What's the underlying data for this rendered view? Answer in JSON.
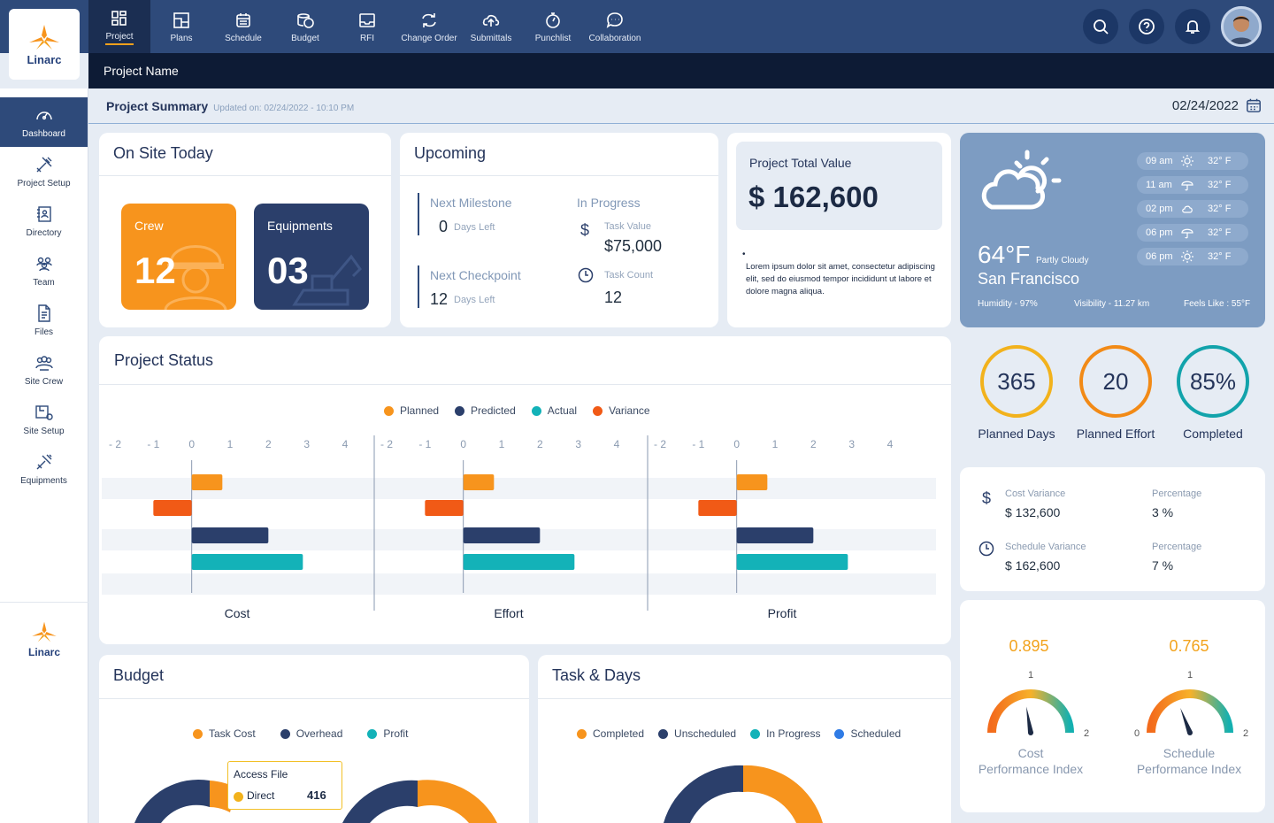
{
  "brand": {
    "name": "Linarc"
  },
  "nav": [
    {
      "label": "Project",
      "icon": "grid-icon"
    },
    {
      "label": "Plans",
      "icon": "plans-icon"
    },
    {
      "label": "Schedule",
      "icon": "calendar-icon"
    },
    {
      "label": "Budget",
      "icon": "coins-icon"
    },
    {
      "label": "RFI",
      "icon": "inbox-icon"
    },
    {
      "label": "Change Order",
      "icon": "swap-icon"
    },
    {
      "label": "Submittals",
      "icon": "cloud-upload-icon"
    },
    {
      "label": "Punchlist",
      "icon": "stopwatch-icon"
    },
    {
      "label": "Collaboration",
      "icon": "chat-icon"
    }
  ],
  "project_name": "Project Name",
  "sidebar": [
    {
      "label": "Dashboard",
      "icon": "gauge-icon"
    },
    {
      "label": "Project Setup",
      "icon": "tools-icon"
    },
    {
      "label": "Directory",
      "icon": "book-icon"
    },
    {
      "label": "Team",
      "icon": "team-icon"
    },
    {
      "label": "Files",
      "icon": "file-icon"
    },
    {
      "label": "Site Crew",
      "icon": "crew-icon"
    },
    {
      "label": "Site  Setup",
      "icon": "site-setup-icon"
    },
    {
      "label": "Equipments",
      "icon": "equipment-icon"
    }
  ],
  "summary": {
    "title": "Project Summary",
    "updated": "Updated on: 02/24/2022 - 10:10 PM",
    "date": "02/24/2022"
  },
  "onsite": {
    "title": "On Site Today",
    "crew_label": "Crew",
    "crew_value": "12",
    "equip_label": "Equipments",
    "equip_value": "03"
  },
  "upcoming": {
    "title": "Upcoming",
    "milestone_label": "Next Milestone",
    "milestone_value": "0",
    "milestone_unit": "Days Left",
    "checkpoint_label": "Next Checkpoint",
    "checkpoint_value": "12",
    "checkpoint_unit": "Days Left",
    "inprogress_label": "In Progress",
    "task_value_label": "Task Value",
    "task_value": "$75,000",
    "task_count_label": "Task Count",
    "task_count": "12",
    "dollar_sign": "$"
  },
  "total_value": {
    "label": "Project Total Value",
    "value": "$ 162,600",
    "bullet": "•",
    "note": "Lorem ipsum dolor sit amet, consectetur adipiscing elit, sed do eiusmod tempor incididunt ut labore et dolore magna aliqua."
  },
  "weather": {
    "temp": "64°F",
    "condition": "Partly Cloudy",
    "city": "San Francisco",
    "humidity": "Humidity - 97%",
    "visibility": "Visibility - 11.27 km",
    "feels": "Feels Like : 55°F",
    "forecast": [
      {
        "time": "09 am",
        "icon": "sun-icon",
        "temp": "32° F"
      },
      {
        "time": "11 am",
        "icon": "umbrella-icon",
        "temp": "32° F"
      },
      {
        "time": "02 pm",
        "icon": "cloud-icon",
        "temp": "32° F"
      },
      {
        "time": "06 pm",
        "icon": "umbrella-icon",
        "temp": "32° F"
      },
      {
        "time": "06 pm",
        "icon": "sun-icon",
        "temp": "32° F"
      }
    ]
  },
  "stats": [
    {
      "value": "365",
      "label": "Planned Days",
      "color": "#f2b21c"
    },
    {
      "value": "20",
      "label": "Planned Effort",
      "color": "#f28a16"
    },
    {
      "value": "85%",
      "label": "Completed",
      "color": "#12a3ab"
    }
  ],
  "variance": {
    "cost_label": "Cost Variance",
    "cost_value": "$ 132,600",
    "cost_pct_label": "Percentage",
    "cost_pct": "3 %",
    "sched_label": "Schedule Variance",
    "sched_value": "$ 162,600",
    "sched_pct_label": "Percentage",
    "sched_pct": "7 %",
    "dollar_sign": "$"
  },
  "project_status": {
    "title": "Project Status"
  },
  "chart_data": {
    "type": "bar",
    "orientation": "horizontal",
    "panels": [
      "Cost",
      "Effort",
      "Profit"
    ],
    "x_ticks": [
      "- 2",
      "- 1",
      "0",
      "1",
      "2",
      "3",
      "4"
    ],
    "xlim": [
      -2,
      4
    ],
    "series": [
      {
        "name": "Planned",
        "color": "#f7941d",
        "values": [
          0.8,
          0.8,
          0.8
        ]
      },
      {
        "name": "Variance",
        "color": "#f15a16",
        "values": [
          -1.0,
          -1.0,
          -1.0
        ]
      },
      {
        "name": "Predicted",
        "color": "#2b3f6b",
        "values": [
          2.0,
          2.0,
          2.0
        ]
      },
      {
        "name": "Actual",
        "color": "#13b2b8",
        "values": [
          2.9,
          2.9,
          2.9
        ]
      }
    ],
    "legend": [
      {
        "name": "Planned",
        "color": "#f7941d"
      },
      {
        "name": "Predicted",
        "color": "#2b3f6b"
      },
      {
        "name": "Actual",
        "color": "#13b2b8"
      },
      {
        "name": "Variance",
        "color": "#f15a16"
      }
    ],
    "legend_position": "top"
  },
  "gauges": [
    {
      "value": "0.895",
      "min": "",
      "mid": "1",
      "max": "2",
      "label1": "Cost",
      "label2": "Performance Index",
      "reading": 0.895
    },
    {
      "value": "0.765",
      "min": "0",
      "mid": "1",
      "max": "2",
      "label1": "Schedule",
      "label2": "Performance Index",
      "reading": 0.765
    }
  ],
  "budget": {
    "title": "Budget",
    "legend": [
      {
        "name": "Task Cost",
        "color": "#f7941d"
      },
      {
        "name": "Overhead",
        "color": "#2b3f6b"
      },
      {
        "name": "Profit",
        "color": "#13b2b8"
      }
    ],
    "tooltip_title": "Access File",
    "tooltip_name": "Direct",
    "tooltip_value": "416"
  },
  "tasks": {
    "title": "Task & Days",
    "legend": [
      {
        "name": "Completed",
        "color": "#f7941d"
      },
      {
        "name": "Unscheduled",
        "color": "#2b3f6b"
      },
      {
        "name": "In Progress",
        "color": "#13b2b8"
      },
      {
        "name": "Scheduled",
        "color": "#2f7be5"
      }
    ]
  }
}
